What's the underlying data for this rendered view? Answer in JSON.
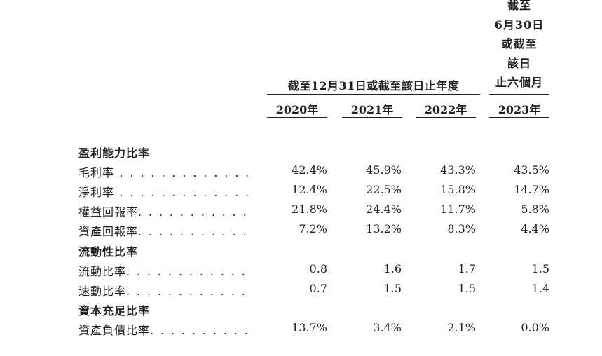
{
  "header": {
    "last_col_lines": [
      "截至",
      "6月30日",
      "或截至",
      "該日",
      "止六個月"
    ],
    "group_label": "截至12月31日或截至該日止年度",
    "years": [
      "2020年",
      "2021年",
      "2022年",
      "2023年"
    ]
  },
  "sections": [
    {
      "title": "盈利能力比率",
      "rows": [
        {
          "label": "毛利率",
          "leader": " . . . . . . . . . . . . . . . . . . .",
          "values": [
            "42.4%",
            "45.9%",
            "43.3%",
            "43.5%"
          ]
        },
        {
          "label": "淨利率",
          "leader": " . . . . . . . . . . . . . . . . . . .",
          "values": [
            "12.4%",
            "22.5%",
            "15.8%",
            "14.7%"
          ]
        },
        {
          "label": "權益回報率",
          "leader": ". . . . . . . . . . . . . . . .",
          "values": [
            "21.8%",
            "24.4%",
            "11.7%",
            "5.8%"
          ]
        },
        {
          "label": "資產回報率",
          "leader": ". . . . . . . . . . . . . . . .",
          "values": [
            "7.2%",
            "13.2%",
            "8.3%",
            "4.4%"
          ]
        }
      ]
    },
    {
      "title": "流動性比率",
      "rows": [
        {
          "label": "流動比率",
          "leader": ". . . . . . . . . . . . . . . . . .",
          "values": [
            "0.8",
            "1.6",
            "1.7",
            "1.5"
          ]
        },
        {
          "label": "速動比率",
          "leader": ". . . . . . . . . . . . . . . . . .",
          "values": [
            "0.7",
            "1.5",
            "1.5",
            "1.4"
          ]
        }
      ]
    },
    {
      "title": "資本充足比率",
      "rows": [
        {
          "label": "資產負債比率",
          "leader": ". . . . . . . . . . . . . .",
          "values": [
            "13.7%",
            "3.4%",
            "2.1%",
            "0.0%"
          ]
        }
      ]
    }
  ]
}
